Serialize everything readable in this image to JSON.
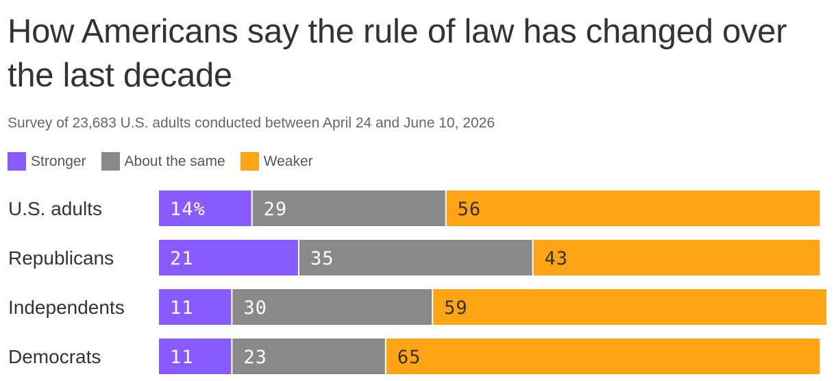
{
  "title": "How Americans say the rule of law has changed over the last decade",
  "subtitle": "Survey of 23,683 U.S. adults conducted between April 24 and June 10, 2026",
  "colors": {
    "stronger": "#875bff",
    "same": "#898989",
    "weaker": "#ffa415",
    "light_text": "#ffffff",
    "dark_text": "#333333"
  },
  "legend": [
    {
      "label": "Stronger",
      "color": "#875bff"
    },
    {
      "label": "About the same",
      "color": "#898989"
    },
    {
      "label": "Weaker",
      "color": "#ffa415"
    }
  ],
  "chart_data": {
    "type": "bar",
    "orientation": "horizontal",
    "stacked": true,
    "categories": [
      "U.S. adults",
      "Republicans",
      "Independents",
      "Democrats"
    ],
    "series": [
      {
        "name": "Stronger",
        "values": [
          14,
          21,
          11,
          11
        ],
        "labels": [
          "14%",
          "21",
          "11",
          "11"
        ]
      },
      {
        "name": "About the same",
        "values": [
          29,
          35,
          30,
          23
        ],
        "labels": [
          "29",
          "35",
          "30",
          "23"
        ]
      },
      {
        "name": "Weaker",
        "values": [
          56,
          43,
          59,
          65
        ],
        "labels": [
          "56",
          "43",
          "59",
          "65"
        ]
      }
    ],
    "xlim": [
      0,
      100
    ],
    "grid": false,
    "legend_position": "top-left"
  }
}
